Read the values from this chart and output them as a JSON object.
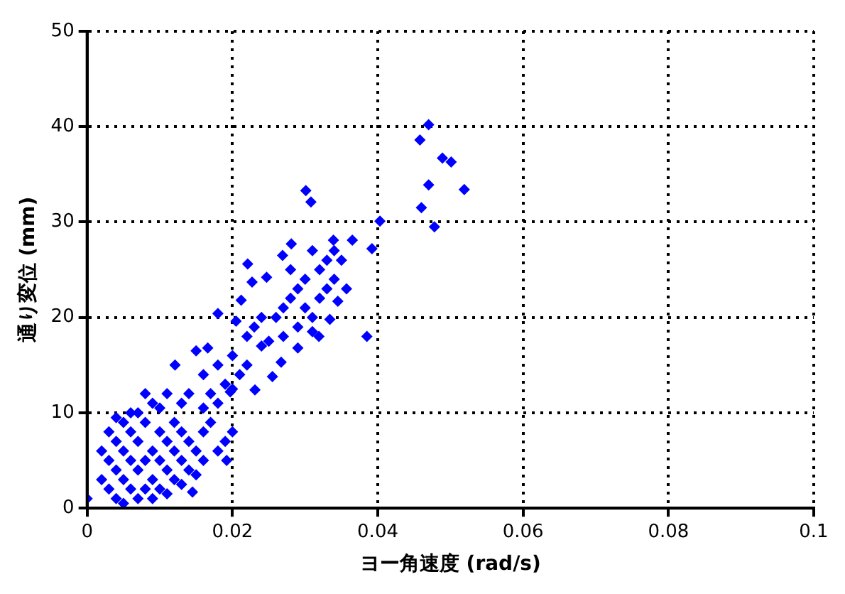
{
  "chart_data": {
    "type": "scatter",
    "xlabel": "ヨー角速度 (rad/s)",
    "ylabel": "通り変位 (mm)",
    "xlim": [
      0,
      0.1
    ],
    "xticks": [
      0,
      0.02,
      0.04,
      0.06,
      0.08,
      0.1
    ],
    "ylim": [
      0,
      50
    ],
    "yticks": [
      0,
      10,
      20,
      30,
      40,
      50
    ],
    "grid": true,
    "marker": "diamond",
    "legend": false,
    "series": [
      {
        "color": "#0000ff",
        "x": [
          0.047,
          0.0458,
          0.0489,
          0.0501,
          0.047,
          0.0519,
          0.046,
          0.0478,
          0.0403,
          0.0392,
          0.0365,
          0.0339,
          0.0385,
          0.0301,
          0.0308,
          0.0281,
          0.0269,
          0.0221,
          0.0247,
          0.0227,
          0.0212,
          0.018,
          0.0205,
          0.0357,
          0.0345,
          0.0334,
          0.0319,
          0.029,
          0.0255,
          0.0267,
          0.0231,
          0.0197,
          0.02,
          0.0192,
          0.0145,
          0,
          0.0121,
          0.0166,
          0.028,
          0.03,
          0.032,
          0.033,
          0.031,
          0.029,
          0.027,
          0.034,
          0.032,
          0.03,
          0.035,
          0.031,
          0.033,
          0.028,
          0.026,
          0.029,
          0.031,
          0.034,
          0.025,
          0.027,
          0.014,
          0.016,
          0.018,
          0.02,
          0.022,
          0.017,
          0.019,
          0.021,
          0.015,
          0.023,
          0.024,
          0.013,
          0.018,
          0.02,
          0.016,
          0.022,
          0.024,
          0.003,
          0.003,
          0.004,
          0.004,
          0.004,
          0.005,
          0.005,
          0.005,
          0.005,
          0.006,
          0.006,
          0.006,
          0.006,
          0.007,
          0.007,
          0.007,
          0.008,
          0.008,
          0.008,
          0.009,
          0.009,
          0.009,
          0.01,
          0.01,
          0.01,
          0.011,
          0.011,
          0.011,
          0.012,
          0.012,
          0.012,
          0.013,
          0.013,
          0.014,
          0.014,
          0.015,
          0.016,
          0.017,
          0.018,
          0.002,
          0.002,
          0.003,
          0.004,
          0.007,
          0.008,
          0.01,
          0.013,
          0.009,
          0.011,
          0.015,
          0.016,
          0.019
        ],
        "values": [
          40.2,
          38.6,
          36.7,
          36.3,
          33.9,
          33.4,
          31.5,
          29.5,
          30.1,
          27.2,
          28.1,
          28.1,
          18,
          33.3,
          32.1,
          27.7,
          26.5,
          25.6,
          24.2,
          23.7,
          21.8,
          20.4,
          19.6,
          23,
          21.7,
          19.8,
          18,
          16.8,
          13.8,
          15.3,
          12.4,
          12.2,
          8,
          5,
          1.7,
          1,
          15,
          16.8,
          22,
          24,
          25,
          26,
          20,
          19,
          21,
          24,
          22,
          21,
          26,
          27,
          23,
          25,
          20,
          23,
          18.5,
          27,
          17.5,
          18,
          12,
          14,
          15,
          16,
          18,
          12,
          13,
          14,
          16.5,
          19,
          17,
          11,
          11,
          12.5,
          10.5,
          15,
          20,
          2,
          5,
          1,
          4,
          7,
          0.5,
          3,
          6,
          9,
          2,
          5,
          8,
          10,
          1,
          4,
          7,
          2,
          5,
          9,
          3,
          6,
          11,
          2,
          5,
          8,
          4,
          7,
          12,
          3,
          6,
          9,
          5,
          8,
          4,
          7,
          6,
          8,
          9,
          6,
          3,
          6,
          8,
          9.5,
          10,
          12,
          10.5,
          2.5,
          1,
          1.5,
          3.5,
          5,
          7
        ]
      }
    ]
  }
}
